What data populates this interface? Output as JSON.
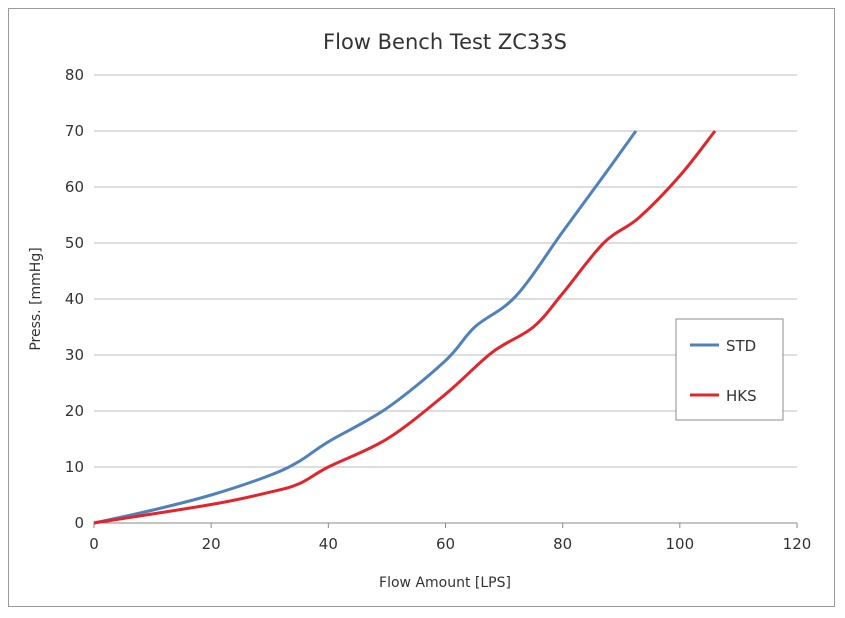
{
  "chart_data": {
    "type": "line",
    "title": "Flow Bench Test  ZC33S",
    "xlabel": "Flow Amount [LPS]",
    "ylabel": "Press. [mmHg]",
    "xlim": [
      0,
      120
    ],
    "ylim": [
      0,
      80
    ],
    "xticks": [
      0,
      20,
      40,
      60,
      80,
      100,
      120
    ],
    "yticks": [
      0,
      10,
      20,
      30,
      40,
      50,
      60,
      70,
      80
    ],
    "grid": "horizontal",
    "legend_position": "right",
    "series": [
      {
        "name": "STD",
        "color": "#4f81bd",
        "x": [
          0,
          10,
          20,
          30,
          35,
          40,
          50,
          60,
          65,
          72,
          80,
          87,
          92.5
        ],
        "y": [
          0,
          2.3,
          5,
          8.5,
          11,
          14.5,
          20.5,
          29,
          35,
          40.5,
          52,
          62,
          70
        ]
      },
      {
        "name": "HKS",
        "color": "#e3242b",
        "x": [
          0,
          20,
          30,
          35,
          40,
          50,
          60,
          68,
          75,
          80,
          87,
          93,
          100,
          106
        ],
        "y": [
          0,
          3.3,
          5.5,
          7,
          10,
          15,
          23,
          30.5,
          35,
          41,
          50,
          54.5,
          62,
          70
        ]
      }
    ]
  }
}
